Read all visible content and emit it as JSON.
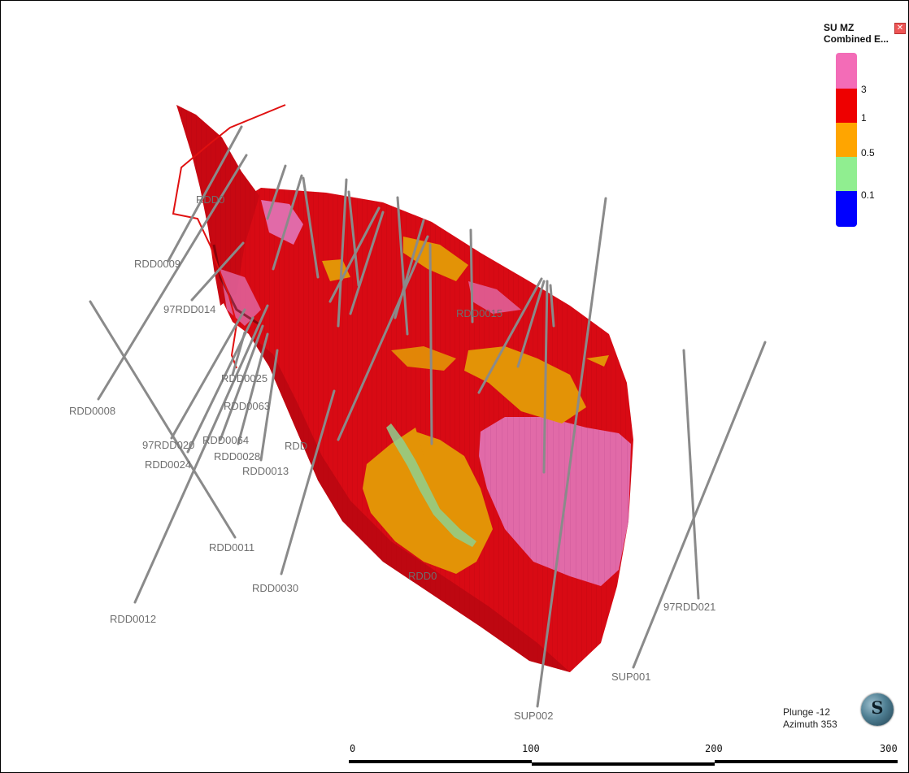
{
  "legend": {
    "title_line1": "SU MZ",
    "title_line2": "Combined E...",
    "close_label": "✕",
    "entries": [
      {
        "value": "3",
        "color": "#f36cb7"
      },
      {
        "value": "1",
        "color": "#ee0000"
      },
      {
        "value": "0.5",
        "color": "#ffa500"
      },
      {
        "value": "0.1",
        "color": "#90ee90"
      },
      {
        "value": "",
        "color": "#0000ff"
      }
    ]
  },
  "drillholes": [
    "RDD0009",
    "97RDD014",
    "RDD0008",
    "RDD0025",
    "RDD0063",
    "97RDD020",
    "RDD0024",
    "RDD0064",
    "RDD0028",
    "RDD0013",
    "RDD0011",
    "RDD0030",
    "RDD0012",
    "RDD0015",
    "97RDD021",
    "SUP001",
    "SUP002",
    "RDD0",
    "RDD",
    "RDD0"
  ],
  "orientation": {
    "plunge": "Plunge -12",
    "azimuth": "Azimuth 353"
  },
  "logo_letter": "S",
  "scale_bar": {
    "ticks": [
      "0",
      "100",
      "200",
      "300"
    ]
  },
  "colors": {
    "body_red": "#d80a14",
    "pink": "#e16aa8",
    "orange": "#e39306",
    "green": "#8fd08e",
    "drillhole": "#8a8a8a",
    "trace_red": "#e01010"
  }
}
